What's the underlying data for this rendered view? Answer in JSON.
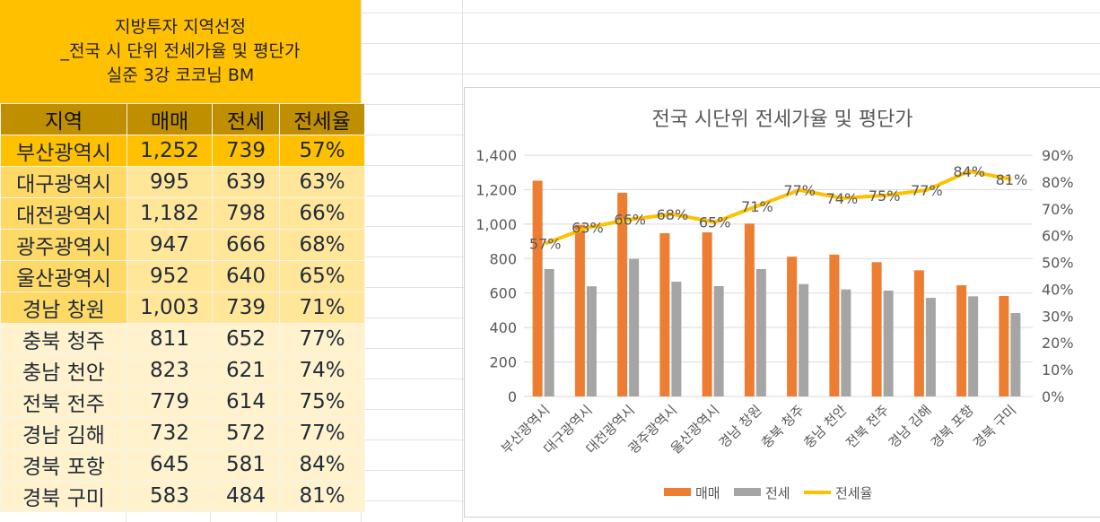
{
  "title_lines": [
    "지방투자 지역선정",
    "_전국 시 단위 전세가율 및 평단가",
    "실준 3강 코코님 BM"
  ],
  "table": {
    "headers": [
      "지역",
      "매매",
      "전세",
      "전세율"
    ],
    "rows": [
      [
        "부산광역시",
        "1,252",
        "739",
        "57%"
      ],
      [
        "대구광역시",
        "995",
        "639",
        "63%"
      ],
      [
        "대전광역시",
        "1,182",
        "798",
        "66%"
      ],
      [
        "광주광역시",
        "947",
        "666",
        "68%"
      ],
      [
        "울산광역시",
        "952",
        "640",
        "65%"
      ],
      [
        "경남 창원",
        "1,003",
        "739",
        "71%"
      ],
      [
        "충북 청주",
        "811",
        "652",
        "77%"
      ],
      [
        "충남 천안",
        "823",
        "621",
        "74%"
      ],
      [
        "전북 전주",
        "779",
        "614",
        "75%"
      ],
      [
        "경남 김해",
        "732",
        "572",
        "77%"
      ],
      [
        "경북 포항",
        "645",
        "581",
        "84%"
      ],
      [
        "경북 구미",
        "583",
        "484",
        "81%"
      ]
    ]
  },
  "colors": {
    "tier1": "#FFC000",
    "tier2_region": "#FFD966",
    "tier2_value": "#FFE699",
    "tier3": "#FFF2CC",
    "sale": "#ED7D31",
    "jeonse": "#A5A5A5",
    "ratio": "#FFC000"
  },
  "chart_data": {
    "type": "bar+line",
    "title": "전국 시단위 전세가율 및 평단가",
    "categories": [
      "부산광역시",
      "대구광역시",
      "대전광역시",
      "광주광역시",
      "울산광역시",
      "경남 창원",
      "충북 청주",
      "충남 천안",
      "전북 전주",
      "경남 김해",
      "경북 포항",
      "경북 구미"
    ],
    "series": [
      {
        "name": "매매",
        "type": "bar",
        "values": [
          1252,
          995,
          1182,
          947,
          952,
          1003,
          811,
          823,
          779,
          732,
          645,
          583
        ]
      },
      {
        "name": "전세",
        "type": "bar",
        "values": [
          739,
          639,
          798,
          666,
          640,
          739,
          652,
          621,
          614,
          572,
          581,
          484
        ]
      },
      {
        "name": "전세율",
        "type": "line",
        "axis": "right",
        "values": [
          57,
          63,
          66,
          68,
          65,
          71,
          77,
          74,
          75,
          77,
          84,
          81
        ],
        "labels": [
          "57%",
          "63%",
          "66%",
          "68%",
          "65%",
          "71%",
          "77%",
          "74%",
          "75%",
          "77%",
          "84%",
          "81%"
        ]
      }
    ],
    "ylim": [
      0,
      1400
    ],
    "yticks": [
      "0",
      "200",
      "400",
      "600",
      "800",
      "1,000",
      "1,200",
      "1,400"
    ],
    "y2lim": [
      0,
      90
    ],
    "y2ticks": [
      "0%",
      "10%",
      "20%",
      "30%",
      "40%",
      "50%",
      "60%",
      "70%",
      "80%",
      "90%"
    ],
    "legend": "bottom"
  }
}
